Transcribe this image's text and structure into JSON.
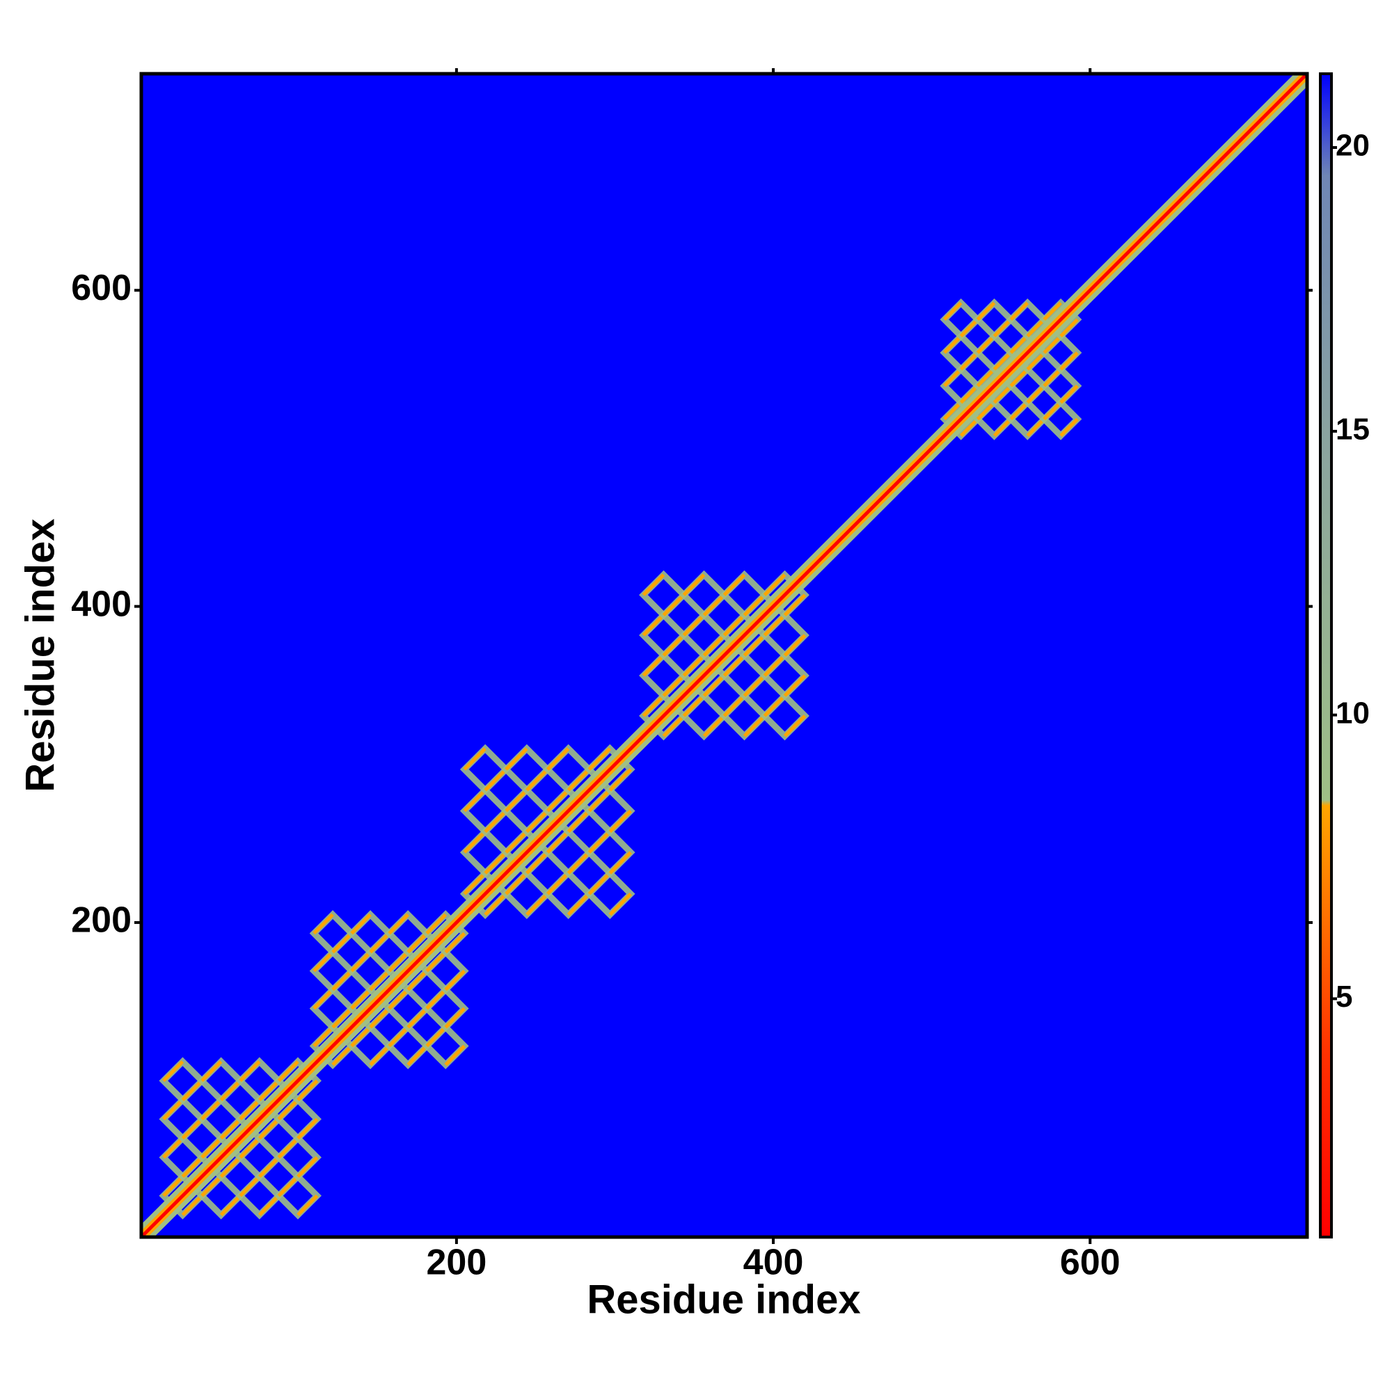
{
  "chart_data": {
    "type": "heatmap",
    "xlabel": "Residue index",
    "ylabel": "Residue index",
    "xlim": [
      1,
      737
    ],
    "ylim": [
      1,
      737
    ],
    "xticks": [
      200,
      400,
      600
    ],
    "yticks": [
      200,
      400,
      600
    ],
    "background_color": "#0000ff",
    "domains": [
      [
        15,
        112
      ],
      [
        110,
        205
      ],
      [
        205,
        310
      ],
      [
        318,
        420
      ],
      [
        508,
        592
      ]
    ],
    "colorbar": {
      "clim": [
        0.8,
        21.3
      ],
      "ticks": [
        5,
        10,
        15,
        20
      ],
      "stops": [
        {
          "value": 0.8,
          "color": "#ff0000"
        },
        {
          "value": 4,
          "color": "#ff3000"
        },
        {
          "value": 8.4,
          "color": "#ffa500"
        },
        {
          "value": 8.5,
          "color": "#9fbf86"
        },
        {
          "value": 15,
          "color": "#8aa3a0"
        },
        {
          "value": 19.5,
          "color": "#6f86b5"
        },
        {
          "value": 21.3,
          "color": "#0000ff"
        }
      ]
    }
  }
}
